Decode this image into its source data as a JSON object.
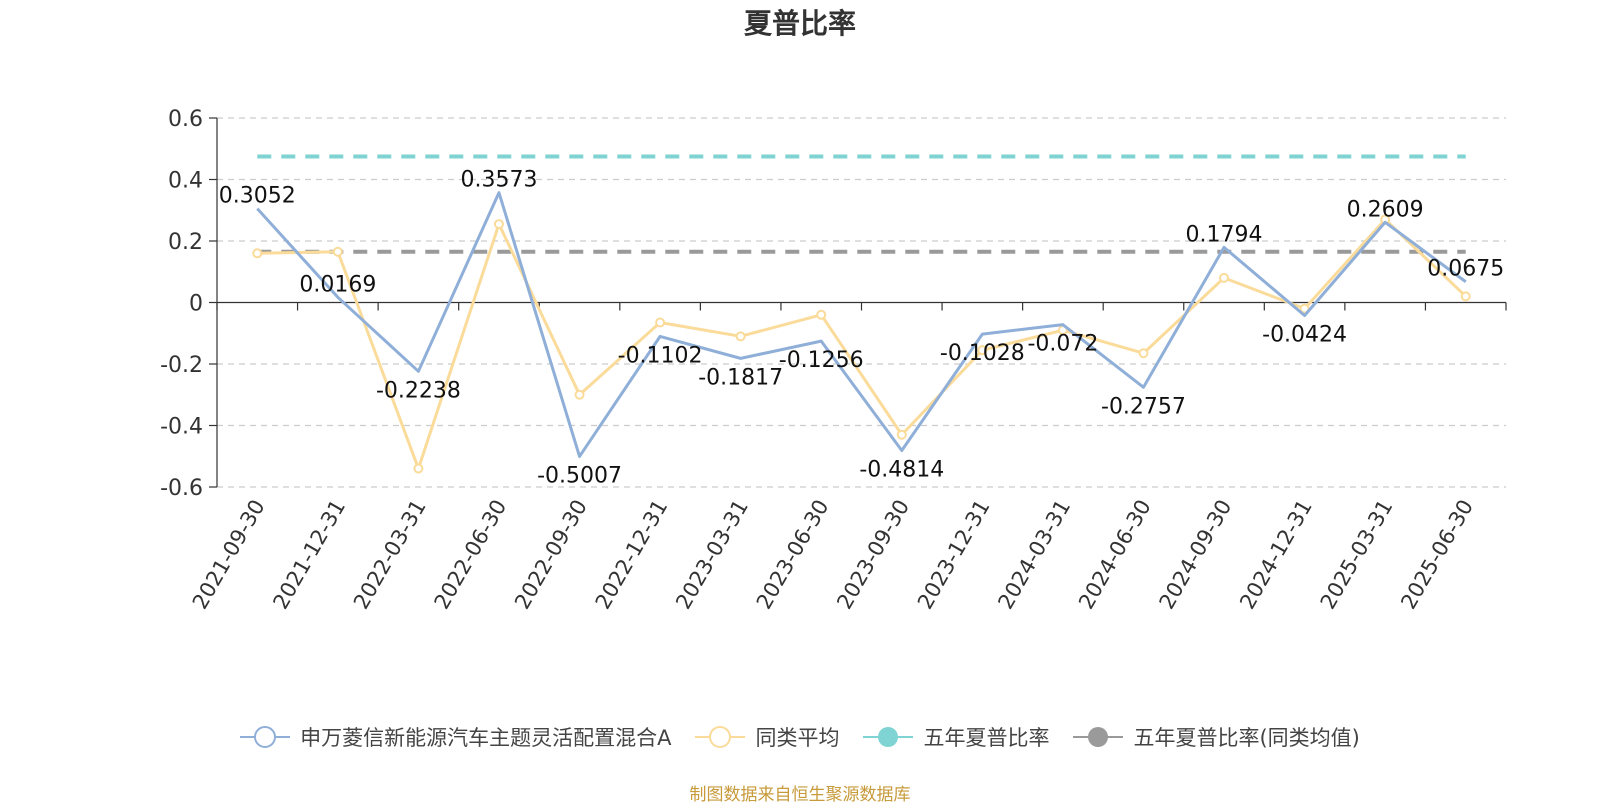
{
  "chart_data": {
    "type": "line",
    "title": "夏普比率",
    "categories": [
      "2021-09-30",
      "2021-12-31",
      "2022-03-31",
      "2022-06-30",
      "2022-09-30",
      "2022-12-31",
      "2023-03-31",
      "2023-06-30",
      "2023-09-30",
      "2023-12-31",
      "2024-03-31",
      "2024-06-30",
      "2024-09-30",
      "2024-12-31",
      "2025-03-31",
      "2025-06-30"
    ],
    "ylim": [
      -0.6,
      0.6
    ],
    "yticks": [
      "-0.6",
      "-0.4",
      "-0.2",
      "0",
      "0.2",
      "0.4",
      "0.6"
    ],
    "grid": true,
    "legend_position": "bottom",
    "series": [
      {
        "name": "申万菱信新能源汽车主题灵活配置混合A",
        "color": "#8fafd8",
        "show_labels": true,
        "values": [
          0.3052,
          0.0169,
          -0.2238,
          0.3573,
          -0.5007,
          -0.1102,
          -0.1817,
          -0.1256,
          -0.4814,
          -0.1028,
          -0.072,
          -0.2757,
          0.1794,
          -0.0424,
          0.2609,
          0.0675
        ],
        "labels": [
          "0.3052",
          "0.0169",
          "-0.2238",
          "0.3573",
          "-0.5007",
          "-0.1102",
          "-0.1817",
          "-0.1256",
          "-0.4814",
          "-0.1028",
          "-0.072",
          "-0.2757",
          "0.1794",
          "-0.0424",
          "0.2609",
          "0.0675"
        ]
      },
      {
        "name": "同类平均",
        "color": "#fadb9a",
        "show_labels": false,
        "values": [
          0.16,
          0.165,
          -0.54,
          0.255,
          -0.3,
          -0.065,
          -0.11,
          -0.04,
          -0.43,
          -0.155,
          -0.09,
          -0.165,
          0.08,
          -0.02,
          0.27,
          0.02
        ]
      }
    ],
    "reference_lines": [
      {
        "name": "五年夏普比率",
        "value": 0.475,
        "color": "#7fd3d3"
      },
      {
        "name": "五年夏普比率(同类均值)",
        "value": 0.165,
        "color": "#9a9a9a"
      }
    ]
  },
  "source_text": "制图数据来自恒生聚源数据库"
}
